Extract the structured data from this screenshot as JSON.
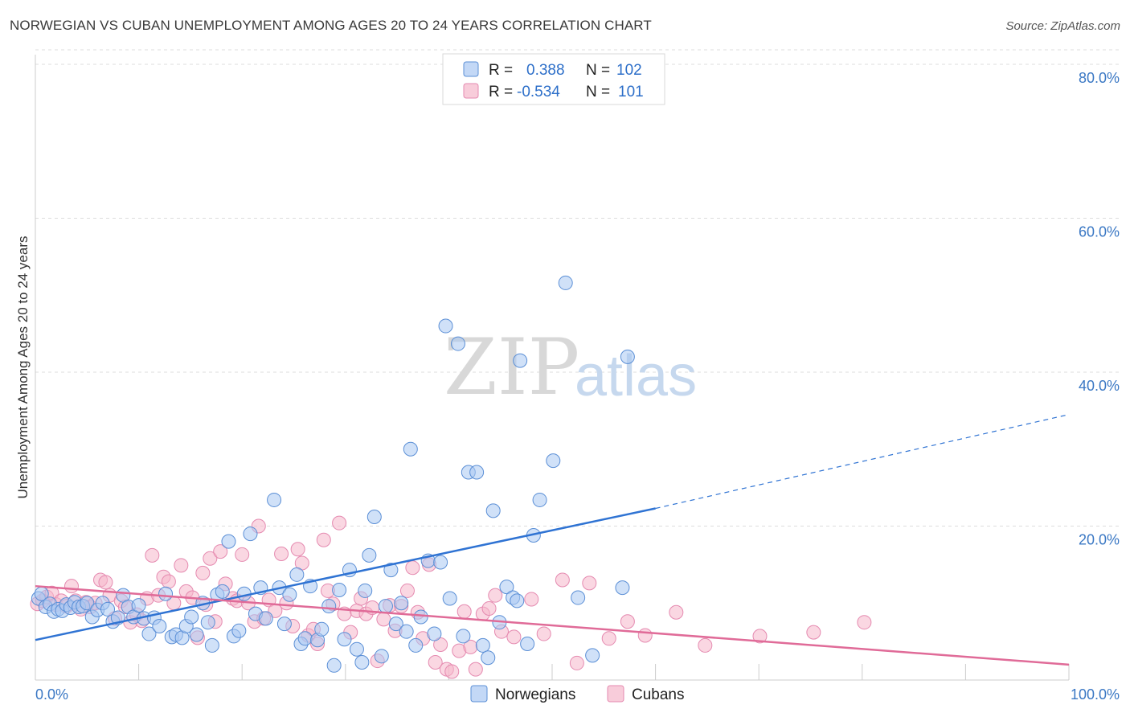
{
  "title": "NORWEGIAN VS CUBAN UNEMPLOYMENT AMONG AGES 20 TO 24 YEARS CORRELATION CHART",
  "source": "Source: ZipAtlas.com",
  "watermark": {
    "zip": "ZIP",
    "atlas": "atlas"
  },
  "colors": {
    "blue_fill": "#a9c8f2",
    "blue_stroke": "#5b8fd6",
    "blue_line": "#2f73d3",
    "pink_fill": "#f5b7cb",
    "pink_stroke": "#e58ab0",
    "pink_line": "#e06b98",
    "tick": "#3b78c4",
    "grid": "#dddddd"
  },
  "legend": {
    "rows": [
      {
        "r_label": "R =",
        "r_value": "0.388",
        "n_label": "N =",
        "n_value": "102"
      },
      {
        "r_label": "R =",
        "r_value": "-0.534",
        "n_label": "N =",
        "n_value": "101"
      }
    ]
  },
  "chart_data": {
    "type": "scatter",
    "ylabel": "Unemployment Among Ages 20 to 24 years",
    "xlim": [
      0,
      100
    ],
    "ylim": [
      0,
      84
    ],
    "x_tick_labels": [
      "0.0%",
      "100.0%"
    ],
    "y_ticks": [
      20,
      40,
      60,
      80
    ],
    "y_tick_labels": [
      "20.0%",
      "40.0%",
      "60.0%",
      "80.0%"
    ],
    "legend_placement": "top-center",
    "grid": true,
    "series": [
      {
        "name": "Norwegians",
        "color": "#a9c8f2",
        "trend": {
          "x0": 0,
          "y0": 5.2,
          "x1": 60,
          "y1": 22.3,
          "dashed_to_x": 100,
          "dashed_to_y": 34.5
        },
        "points": [
          [
            0.3,
            10.6
          ],
          [
            0.6,
            11.2
          ],
          [
            1.0,
            9.5
          ],
          [
            1.4,
            9.9
          ],
          [
            1.8,
            8.9
          ],
          [
            2.2,
            9.2
          ],
          [
            2.6,
            9.0
          ],
          [
            3.0,
            9.8
          ],
          [
            3.4,
            9.4
          ],
          [
            3.8,
            10.1
          ],
          [
            4.2,
            9.5
          ],
          [
            4.6,
            9.6
          ],
          [
            5.0,
            10.0
          ],
          [
            5.5,
            8.2
          ],
          [
            6.0,
            9.1
          ],
          [
            6.5,
            10.0
          ],
          [
            7.0,
            9.2
          ],
          [
            7.5,
            7.6
          ],
          [
            8.0,
            8.1
          ],
          [
            8.5,
            11.0
          ],
          [
            9.0,
            9.5
          ],
          [
            9.5,
            8.2
          ],
          [
            10.0,
            9.7
          ],
          [
            10.5,
            8.0
          ],
          [
            11.0,
            6.0
          ],
          [
            11.5,
            8.1
          ],
          [
            12.0,
            7.0
          ],
          [
            12.6,
            11.2
          ],
          [
            13.2,
            5.6
          ],
          [
            13.6,
            5.9
          ],
          [
            14.2,
            5.5
          ],
          [
            14.6,
            7.0
          ],
          [
            15.1,
            8.2
          ],
          [
            15.6,
            5.9
          ],
          [
            16.2,
            10.0
          ],
          [
            16.7,
            7.5
          ],
          [
            17.1,
            4.5
          ],
          [
            17.6,
            11.1
          ],
          [
            18.1,
            11.5
          ],
          [
            18.7,
            18.0
          ],
          [
            19.2,
            5.7
          ],
          [
            19.7,
            6.4
          ],
          [
            20.2,
            11.2
          ],
          [
            20.8,
            19.0
          ],
          [
            21.3,
            8.6
          ],
          [
            21.8,
            12.0
          ],
          [
            22.3,
            8.0
          ],
          [
            23.1,
            23.4
          ],
          [
            23.6,
            12.0
          ],
          [
            24.1,
            7.3
          ],
          [
            24.6,
            11.1
          ],
          [
            25.3,
            13.7
          ],
          [
            25.7,
            4.7
          ],
          [
            26.1,
            5.4
          ],
          [
            26.6,
            12.2
          ],
          [
            27.3,
            5.2
          ],
          [
            27.7,
            6.6
          ],
          [
            28.4,
            9.6
          ],
          [
            28.9,
            1.9
          ],
          [
            29.4,
            11.7
          ],
          [
            29.9,
            5.3
          ],
          [
            30.4,
            14.3
          ],
          [
            31.1,
            4.0
          ],
          [
            31.6,
            2.3
          ],
          [
            31.9,
            11.6
          ],
          [
            32.3,
            16.2
          ],
          [
            32.8,
            21.2
          ],
          [
            33.5,
            3.1
          ],
          [
            33.9,
            9.6
          ],
          [
            34.4,
            14.3
          ],
          [
            34.9,
            7.3
          ],
          [
            35.4,
            10.0
          ],
          [
            35.9,
            6.3
          ],
          [
            36.3,
            30.0
          ],
          [
            36.8,
            4.5
          ],
          [
            37.3,
            8.2
          ],
          [
            38.0,
            15.5
          ],
          [
            38.6,
            6.0
          ],
          [
            39.2,
            15.3
          ],
          [
            39.7,
            46.0
          ],
          [
            40.1,
            10.6
          ],
          [
            40.9,
            43.7
          ],
          [
            41.4,
            5.7
          ],
          [
            41.9,
            27.0
          ],
          [
            42.7,
            27.0
          ],
          [
            43.3,
            4.5
          ],
          [
            43.8,
            2.9
          ],
          [
            44.3,
            22.0
          ],
          [
            44.9,
            7.5
          ],
          [
            45.6,
            12.1
          ],
          [
            46.2,
            10.7
          ],
          [
            46.6,
            10.3
          ],
          [
            46.9,
            41.5
          ],
          [
            47.6,
            4.7
          ],
          [
            48.2,
            18.8
          ],
          [
            48.8,
            23.4
          ],
          [
            50.1,
            28.5
          ],
          [
            51.3,
            51.6
          ],
          [
            52.5,
            10.7
          ],
          [
            53.9,
            3.2
          ],
          [
            56.8,
            12.0
          ],
          [
            57.3,
            42.0
          ]
        ]
      },
      {
        "name": "Cubans",
        "color": "#f5b7cb",
        "trend": {
          "x0": 0,
          "y0": 12.2,
          "x1": 100,
          "y1": 2.0
        },
        "points": [
          [
            0.2,
            9.9
          ],
          [
            0.7,
            10.3
          ],
          [
            1.1,
            10.8
          ],
          [
            1.6,
            11.3
          ],
          [
            2.0,
            9.8
          ],
          [
            2.5,
            10.3
          ],
          [
            3.0,
            9.6
          ],
          [
            3.5,
            12.2
          ],
          [
            3.9,
            10.3
          ],
          [
            4.4,
            9.2
          ],
          [
            4.9,
            10.1
          ],
          [
            5.3,
            9.5
          ],
          [
            5.8,
            10.0
          ],
          [
            6.3,
            13.0
          ],
          [
            6.8,
            12.7
          ],
          [
            7.2,
            11.0
          ],
          [
            7.7,
            8.0
          ],
          [
            8.3,
            10.3
          ],
          [
            8.7,
            9.5
          ],
          [
            9.2,
            7.5
          ],
          [
            9.8,
            8.5
          ],
          [
            10.3,
            7.7
          ],
          [
            10.8,
            10.6
          ],
          [
            11.3,
            16.2
          ],
          [
            11.9,
            11.0
          ],
          [
            12.4,
            13.4
          ],
          [
            12.9,
            12.8
          ],
          [
            13.4,
            10.0
          ],
          [
            14.1,
            14.9
          ],
          [
            14.6,
            11.5
          ],
          [
            15.2,
            10.7
          ],
          [
            15.7,
            5.5
          ],
          [
            16.2,
            13.9
          ],
          [
            16.5,
            9.8
          ],
          [
            16.9,
            15.8
          ],
          [
            17.4,
            7.6
          ],
          [
            17.9,
            16.7
          ],
          [
            18.4,
            12.5
          ],
          [
            19.1,
            10.6
          ],
          [
            19.5,
            10.3
          ],
          [
            20.0,
            16.3
          ],
          [
            20.6,
            10.0
          ],
          [
            21.2,
            7.6
          ],
          [
            21.6,
            20.0
          ],
          [
            22.1,
            8.0
          ],
          [
            22.6,
            10.4
          ],
          [
            23.2,
            9.0
          ],
          [
            23.8,
            16.4
          ],
          [
            24.3,
            10.0
          ],
          [
            24.9,
            7.0
          ],
          [
            25.4,
            17.0
          ],
          [
            25.8,
            15.2
          ],
          [
            26.4,
            5.8
          ],
          [
            26.9,
            6.6
          ],
          [
            27.3,
            4.7
          ],
          [
            27.9,
            18.2
          ],
          [
            28.3,
            11.6
          ],
          [
            28.8,
            9.9
          ],
          [
            29.4,
            20.4
          ],
          [
            29.9,
            8.6
          ],
          [
            30.5,
            6.2
          ],
          [
            31.1,
            9.0
          ],
          [
            31.5,
            10.6
          ],
          [
            32.0,
            8.6
          ],
          [
            32.6,
            9.4
          ],
          [
            33.1,
            2.5
          ],
          [
            33.7,
            7.9
          ],
          [
            34.3,
            9.7
          ],
          [
            34.8,
            6.4
          ],
          [
            35.4,
            9.6
          ],
          [
            36.0,
            11.6
          ],
          [
            36.5,
            14.6
          ],
          [
            37.0,
            8.8
          ],
          [
            37.5,
            5.4
          ],
          [
            38.1,
            15.0
          ],
          [
            38.7,
            2.3
          ],
          [
            39.2,
            4.6
          ],
          [
            39.8,
            1.4
          ],
          [
            40.3,
            1.1
          ],
          [
            41.0,
            3.8
          ],
          [
            41.5,
            8.9
          ],
          [
            42.1,
            4.3
          ],
          [
            42.6,
            1.4
          ],
          [
            43.3,
            8.6
          ],
          [
            43.9,
            9.3
          ],
          [
            44.5,
            11.0
          ],
          [
            45.1,
            6.3
          ],
          [
            46.3,
            5.6
          ],
          [
            48.0,
            10.5
          ],
          [
            49.2,
            6.0
          ],
          [
            51.0,
            13.0
          ],
          [
            52.4,
            2.2
          ],
          [
            53.6,
            12.6
          ],
          [
            55.5,
            5.4
          ],
          [
            57.3,
            7.6
          ],
          [
            59.0,
            5.8
          ],
          [
            62.0,
            8.8
          ],
          [
            64.8,
            4.5
          ],
          [
            70.1,
            5.7
          ],
          [
            75.3,
            6.2
          ],
          [
            80.2,
            7.5
          ]
        ]
      }
    ]
  }
}
